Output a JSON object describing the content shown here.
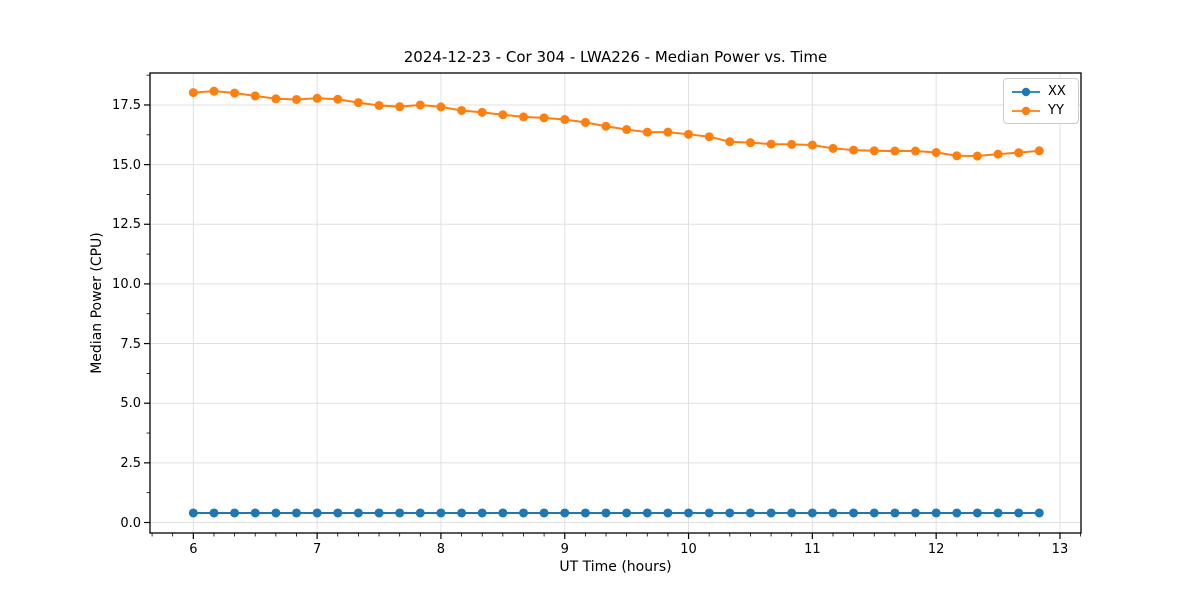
{
  "chart_data": {
    "type": "line",
    "title": "2024-12-23 - Cor 304 - LWA226 - Median Power vs. Time",
    "xlabel": "UT Time (hours)",
    "ylabel": "Median Power (CPU)",
    "xlim": [
      5.65,
      13.17
    ],
    "ylim": [
      -0.44,
      18.84
    ],
    "grid": true,
    "legend_position": "upper right",
    "x_major_ticks": [
      6,
      7,
      8,
      9,
      10,
      11,
      12,
      13
    ],
    "x_tick_labels": [
      "6",
      "7",
      "8",
      "9",
      "10",
      "11",
      "12",
      "13"
    ],
    "y_major_ticks": [
      0,
      2.5,
      5,
      7.5,
      10,
      12.5,
      15,
      17.5
    ],
    "y_tick_labels": [
      "0.0",
      "2.5",
      "5.0",
      "7.5",
      "10.0",
      "12.5",
      "15.0",
      "17.5"
    ],
    "x_minor_interval": 0.166667,
    "y_minor_interval": 1.25,
    "x": [
      6.0,
      6.167,
      6.333,
      6.5,
      6.667,
      6.833,
      7.0,
      7.167,
      7.333,
      7.5,
      7.667,
      7.833,
      8.0,
      8.167,
      8.333,
      8.5,
      8.667,
      8.833,
      9.0,
      9.167,
      9.333,
      9.5,
      9.667,
      9.833,
      10.0,
      10.167,
      10.333,
      10.5,
      10.667,
      10.833,
      11.0,
      11.167,
      11.333,
      11.5,
      11.667,
      11.833,
      12.0,
      12.167,
      12.333,
      12.5,
      12.667,
      12.833
    ],
    "series": [
      {
        "name": "XX",
        "color": "#1f77b4",
        "values": [
          0.4,
          0.4,
          0.4,
          0.4,
          0.4,
          0.4,
          0.4,
          0.4,
          0.4,
          0.4,
          0.4,
          0.4,
          0.4,
          0.4,
          0.4,
          0.4,
          0.4,
          0.4,
          0.4,
          0.4,
          0.4,
          0.4,
          0.4,
          0.4,
          0.4,
          0.4,
          0.4,
          0.4,
          0.4,
          0.4,
          0.4,
          0.4,
          0.4,
          0.4,
          0.4,
          0.4,
          0.4,
          0.4,
          0.4,
          0.4,
          0.4,
          0.4
        ]
      },
      {
        "name": "YY",
        "color": "#ff7f0e",
        "values": [
          18.02,
          18.08,
          18.0,
          17.88,
          17.76,
          17.73,
          17.78,
          17.74,
          17.6,
          17.48,
          17.43,
          17.5,
          17.42,
          17.27,
          17.19,
          17.09,
          17.0,
          16.96,
          16.89,
          16.77,
          16.61,
          16.47,
          16.36,
          16.36,
          16.27,
          16.17,
          15.96,
          15.92,
          15.86,
          15.85,
          15.82,
          15.68,
          15.61,
          15.58,
          15.57,
          15.57,
          15.51,
          15.37,
          15.36,
          15.44,
          15.5,
          15.58
        ]
      }
    ]
  },
  "colors": {
    "background": "#ffffff",
    "grid": "#e0e0e0",
    "spine": "#000000",
    "text": "#000000",
    "legend_border": "#cccccc"
  }
}
